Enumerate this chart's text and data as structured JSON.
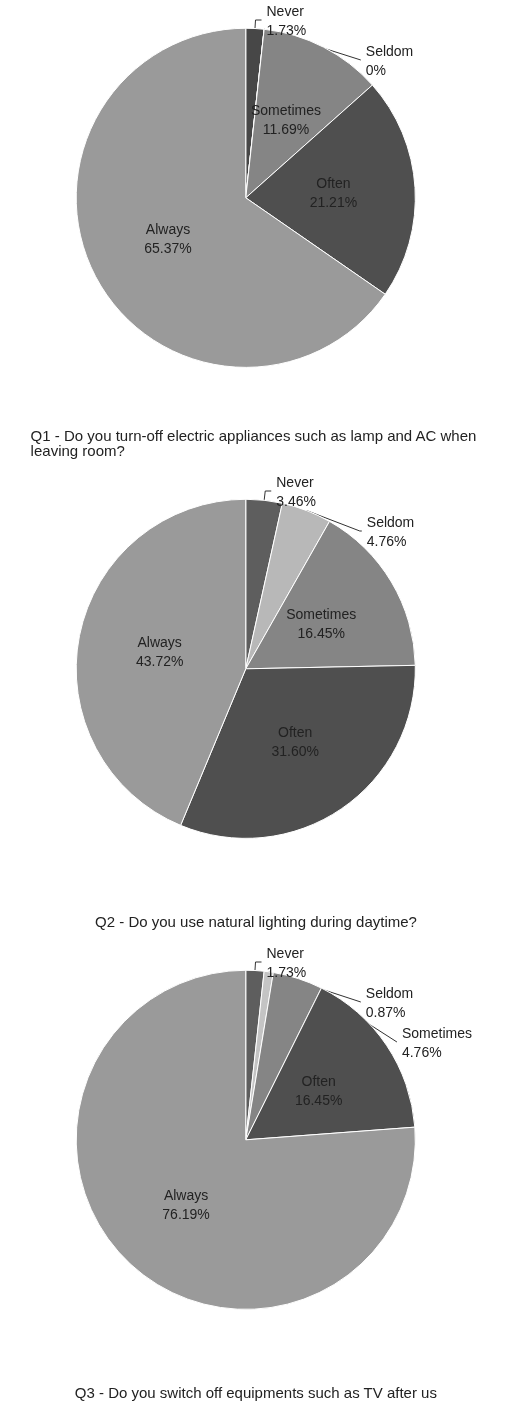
{
  "chart_data": [
    {
      "type": "pie",
      "title": "Q1 - Do you turn-off electric appliances such as lamp and AC when leaving room?",
      "categories": [
        "Never",
        "Seldom",
        "Sometimes",
        "Often",
        "Always"
      ],
      "values": [
        1.73,
        0,
        11.69,
        21.21,
        65.37
      ],
      "value_labels": [
        "1.73%",
        "0%",
        "11.69%",
        "21.21%",
        "65.37%"
      ],
      "colors": [
        "#474747",
        "#b8b8b8",
        "#858585",
        "#4f4f4f",
        "#9a9a9a"
      ]
    },
    {
      "type": "pie",
      "title": "Q2 - Do you use natural lighting during daytime?",
      "categories": [
        "Never",
        "Seldom",
        "Sometimes",
        "Often",
        "Always"
      ],
      "values": [
        3.46,
        4.76,
        16.45,
        31.6,
        43.72
      ],
      "value_labels": [
        "3.46%",
        "4.76%",
        "16.45%",
        "31.60%",
        "43.72%"
      ],
      "colors": [
        "#5e5e5e",
        "#b8b8b8",
        "#858585",
        "#4f4f4f",
        "#9a9a9a"
      ]
    },
    {
      "type": "pie",
      "title": "Q3 - Do you switch off equipments such as TV after us",
      "categories": [
        "Never",
        "Seldom",
        "Sometimes",
        "Often",
        "Always"
      ],
      "values": [
        1.73,
        0.87,
        4.76,
        16.45,
        76.19
      ],
      "value_labels": [
        "1.73%",
        "0.87%",
        "4.76%",
        "16.45%",
        "76.19%"
      ],
      "colors": [
        "#5e5e5e",
        "#c4c4c4",
        "#858585",
        "#4f4f4f",
        "#9a9a9a"
      ]
    }
  ]
}
